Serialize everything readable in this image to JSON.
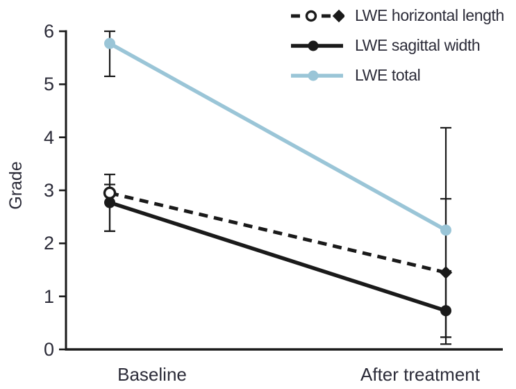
{
  "figure": {
    "background": "#ffffff"
  },
  "chart_data": {
    "type": "line",
    "title": "",
    "xlabel": "",
    "ylabel": "Grade",
    "ylim": [
      0,
      6
    ],
    "yticks": [
      "0",
      "1",
      "2",
      "3",
      "4",
      "5",
      "6"
    ],
    "categories": [
      "Baseline",
      "After treatment"
    ],
    "grid": false,
    "legend_position": "top-right",
    "error_bar_color": "#1a1a1a",
    "text_color": "#2b2b38",
    "series": [
      {
        "name": "LWE horizontal length",
        "line_style": "dashed",
        "color": "#1a1a1a",
        "markers": [
          "open-circle",
          "filled-diamond"
        ],
        "values": [
          2.95,
          1.45
        ],
        "error_low": [
          2.23,
          0.1
        ],
        "error_high": [
          3.3,
          2.84
        ]
      },
      {
        "name": "LWE sagittal width",
        "line_style": "solid",
        "color": "#1a1a1a",
        "markers": [
          "filled-circle",
          "filled-circle"
        ],
        "values": [
          2.77,
          0.73
        ],
        "error_low": [
          2.23,
          0.23
        ],
        "error_high": [
          3.11,
          1.48
        ]
      },
      {
        "name": "LWE total",
        "line_style": "solid",
        "color": "#9ac5d7",
        "markers": [
          "filled-circle",
          "filled-circle"
        ],
        "values": [
          5.77,
          2.25
        ],
        "error_low": [
          5.15,
          0.23
        ],
        "error_high": [
          6.0,
          4.18
        ]
      }
    ]
  }
}
